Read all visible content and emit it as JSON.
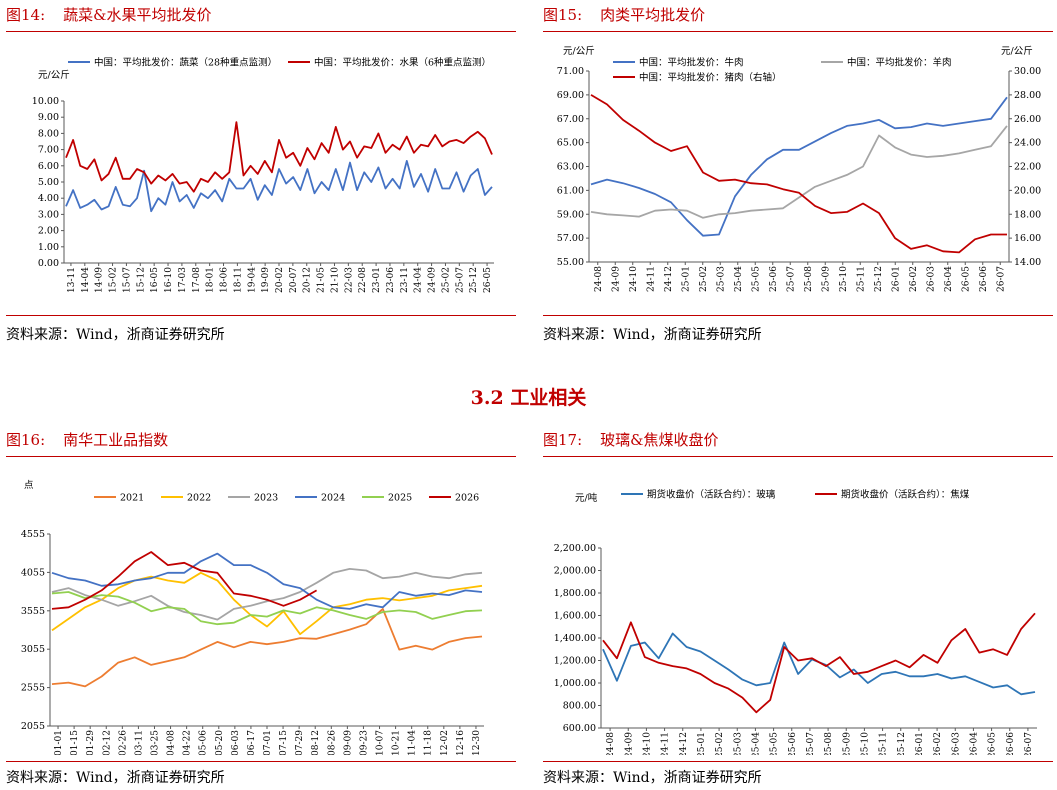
{
  "section_heading": "3.2 工业相关",
  "panels": [
    {
      "id": "fig14",
      "number": "图14:",
      "title": "蔬菜&水果平均批发价",
      "source": "资料来源：Wind，浙商证券研究所",
      "chart_data": {
        "type": "line",
        "unit_left": "元/公斤",
        "ylim": [
          0,
          10
        ],
        "yticks": [
          "0.00",
          "1.00",
          "2.00",
          "3.00",
          "4.00",
          "5.00",
          "6.00",
          "7.00",
          "8.00",
          "9.00",
          "10.00"
        ],
        "x_tick_labels": [
          "13-11",
          "14-04",
          "14-09",
          "15-02",
          "15-07",
          "15-12",
          "16-05",
          "16-10",
          "17-03",
          "17-08",
          "18-01",
          "18-06",
          "18-11",
          "19-04",
          "19-09",
          "20-02",
          "20-07",
          "20-12",
          "21-05",
          "21-10",
          "22-03",
          "22-08",
          "23-01",
          "23-06",
          "23-11",
          "24-04",
          "24-09",
          "25-02",
          "25-07",
          "25-12",
          "26-05"
        ],
        "series": [
          {
            "name": "中国：平均批发价：蔬菜（28种重点监测）",
            "color": "#4472c4",
            "values": [
              3.5,
              4.5,
              3.4,
              3.6,
              3.9,
              3.3,
              3.5,
              4.7,
              3.6,
              3.5,
              4.0,
              5.7,
              3.2,
              4.0,
              3.6,
              5.0,
              3.8,
              4.2,
              3.4,
              4.3,
              4.0,
              4.5,
              3.8,
              5.2,
              4.6,
              4.6,
              5.2,
              3.9,
              4.8,
              4.2,
              5.8,
              4.9,
              5.3,
              4.5,
              5.8,
              4.3,
              5.0,
              4.5,
              5.8,
              4.5,
              6.2,
              4.5,
              5.6,
              5.0,
              5.9,
              4.6,
              5.2,
              4.6,
              6.3,
              4.7,
              5.5,
              4.4,
              5.8,
              4.6,
              4.6,
              5.6,
              4.4,
              5.4,
              5.8,
              4.2,
              4.7
            ]
          },
          {
            "name": "中国：平均批发价：水果（6种重点监测）",
            "color": "#c00000",
            "values": [
              6.5,
              7.6,
              6.0,
              5.8,
              6.4,
              5.1,
              5.5,
              6.5,
              5.2,
              5.2,
              5.8,
              5.6,
              4.9,
              5.4,
              5.1,
              5.5,
              4.9,
              5.0,
              4.4,
              5.2,
              5.0,
              5.6,
              5.2,
              5.6,
              8.7,
              5.4,
              6.0,
              5.5,
              6.3,
              5.6,
              7.6,
              6.5,
              6.8,
              6.0,
              7.1,
              6.4,
              7.4,
              6.8,
              8.4,
              7.0,
              7.5,
              6.5,
              7.2,
              7.1,
              8.0,
              6.8,
              7.3,
              7.0,
              7.8,
              6.8,
              7.3,
              7.2,
              7.9,
              7.2,
              7.5,
              7.6,
              7.4,
              7.8,
              8.1,
              7.7,
              6.7
            ]
          }
        ]
      }
    },
    {
      "id": "fig15",
      "number": "图15:",
      "title": "肉类平均批发价",
      "source": "资料来源：Wind，浙商证券研究所",
      "chart_data": {
        "type": "line",
        "unit_left": "元/公斤",
        "unit_right": "元/公斤",
        "ylim_left": [
          55,
          71
        ],
        "ylim_right": [
          14,
          30
        ],
        "yticks_left": [
          "55.00",
          "57.00",
          "59.00",
          "61.00",
          "63.00",
          "65.00",
          "67.00",
          "69.00",
          "71.00"
        ],
        "yticks_right": [
          "14.00",
          "16.00",
          "18.00",
          "20.00",
          "22.00",
          "24.00",
          "26.00",
          "28.00",
          "30.00"
        ],
        "x_tick_labels": [
          "24-08",
          "24-09",
          "24-10",
          "24-11",
          "24-12",
          "25-01",
          "25-02",
          "25-03",
          "25-04",
          "25-05",
          "25-06",
          "25-07",
          "25-08",
          "25-09",
          "25-10",
          "25-11",
          "25-12",
          "26-01",
          "26-02",
          "26-03",
          "26-04",
          "26-05",
          "26-06",
          "26-07"
        ],
        "series": [
          {
            "name": "中国：平均批发价：牛肉",
            "axis": "left",
            "color": "#4472c4",
            "values": [
              61.5,
              61.9,
              61.6,
              61.2,
              60.7,
              60.0,
              58.5,
              57.2,
              57.3,
              60.5,
              62.3,
              63.6,
              64.4,
              64.4,
              65.1,
              65.8,
              66.4,
              66.6,
              66.9,
              66.2,
              66.3,
              66.6,
              66.4,
              66.6,
              66.8,
              67.0,
              68.8
            ]
          },
          {
            "name": "中国：平均批发价：羊肉",
            "axis": "left",
            "color": "#a6a6a6",
            "values": [
              59.2,
              59.0,
              58.9,
              58.8,
              59.3,
              59.4,
              59.3,
              58.7,
              59.0,
              59.1,
              59.3,
              59.4,
              59.5,
              60.4,
              61.3,
              61.8,
              62.3,
              63.0,
              65.6,
              64.6,
              64.0,
              63.8,
              63.9,
              64.1,
              64.4,
              64.7,
              66.4
            ]
          },
          {
            "name": "中国：平均批发价：猪肉（右轴）",
            "axis": "right",
            "color": "#c00000",
            "values": [
              28.0,
              27.2,
              25.9,
              25.0,
              24.0,
              23.3,
              23.7,
              21.5,
              20.8,
              20.9,
              20.6,
              20.5,
              20.1,
              19.8,
              18.7,
              18.1,
              18.2,
              18.9,
              18.1,
              16.0,
              15.1,
              15.4,
              14.9,
              14.8,
              15.9,
              16.3,
              16.3
            ]
          }
        ]
      }
    },
    {
      "id": "fig16",
      "number": "图16:",
      "title": "南华工业品指数",
      "source": "资料来源：Wind，浙商证券研究所",
      "chart_data": {
        "type": "line",
        "unit_left": "点",
        "ylim": [
          2055,
          4555
        ],
        "yticks": [
          "2055",
          "2555",
          "3055",
          "3555",
          "4055",
          "4555"
        ],
        "x_tick_labels": [
          "01-01",
          "01-15",
          "01-29",
          "02-12",
          "02-26",
          "03-11",
          "03-25",
          "04-08",
          "04-22",
          "05-06",
          "05-20",
          "06-03",
          "06-17",
          "07-01",
          "07-15",
          "07-29",
          "08-12",
          "08-26",
          "09-09",
          "09-23",
          "10-07",
          "10-21",
          "11-04",
          "11-18",
          "12-02",
          "12-16",
          "12-30"
        ],
        "series": [
          {
            "name": "2021",
            "color": "#ed7d31",
            "values": [
              2600,
              2620,
              2570,
              2700,
              2880,
              2950,
              2850,
              2900,
              2950,
              3050,
              3150,
              3080,
              3150,
              3120,
              3150,
              3200,
              3190,
              3250,
              3310,
              3380,
              3580,
              3050,
              3100,
              3050,
              3150,
              3200,
              3220
            ]
          },
          {
            "name": "2022",
            "color": "#ffc000",
            "values": [
              3300,
              3450,
              3600,
              3700,
              3850,
              3950,
              4000,
              3950,
              3920,
              4050,
              3950,
              3700,
              3500,
              3350,
              3550,
              3250,
              3420,
              3600,
              3640,
              3700,
              3720,
              3690,
              3720,
              3750,
              3820,
              3850,
              3880
            ]
          },
          {
            "name": "2023",
            "color": "#a5a5a5",
            "values": [
              3800,
              3850,
              3760,
              3700,
              3620,
              3680,
              3750,
              3620,
              3540,
              3500,
              3440,
              3580,
              3620,
              3680,
              3720,
              3800,
              3920,
              4050,
              4100,
              4080,
              3980,
              4000,
              4050,
              4000,
              3980,
              4030,
              4050
            ]
          },
          {
            "name": "2024",
            "color": "#4472c4",
            "values": [
              4050,
              3980,
              3950,
              3880,
              3900,
              3950,
              3980,
              4050,
              4050,
              4200,
              4300,
              4150,
              4150,
              4050,
              3900,
              3850,
              3700,
              3600,
              3580,
              3640,
              3600,
              3800,
              3750,
              3780,
              3760,
              3820,
              3800
            ]
          },
          {
            "name": "2025",
            "color": "#92d050",
            "values": [
              3780,
              3800,
              3720,
              3760,
              3740,
              3660,
              3550,
              3600,
              3580,
              3420,
              3380,
              3400,
              3500,
              3480,
              3560,
              3520,
              3600,
              3560,
              3500,
              3450,
              3540,
              3560,
              3540,
              3450,
              3500,
              3550,
              3560
            ]
          },
          {
            "name": "2026",
            "color": "#c00000",
            "values": [
              3580,
              3600,
              3700,
              3820,
              4000,
              4200,
              4320,
              4150,
              4180,
              4080,
              4050,
              3780,
              3750,
              3700,
              3620,
              3700,
              3820
            ]
          }
        ]
      }
    },
    {
      "id": "fig17",
      "number": "图17:",
      "title": "玻璃&焦煤收盘价",
      "source": "资料来源：Wind，浙商证券研究所",
      "chart_data": {
        "type": "line",
        "unit_left": "元/吨",
        "ylim": [
          600,
          2200
        ],
        "yticks": [
          "600.00",
          "800.00",
          "1,000.00",
          "1,200.00",
          "1,400.00",
          "1,600.00",
          "1,800.00",
          "2,000.00",
          "2,200.00"
        ],
        "x_tick_labels": [
          "24-08",
          "24-09",
          "24-10",
          "24-11",
          "24-12",
          "25-01",
          "25-02",
          "25-03",
          "25-04",
          "25-05",
          "25-06",
          "25-07",
          "25-08",
          "25-09",
          "25-10",
          "25-11",
          "25-12",
          "26-01",
          "26-02",
          "26-03",
          "26-04",
          "26-05",
          "26-06",
          "26-07"
        ],
        "series": [
          {
            "name": "期货收盘价（活跃合约）：玻璃",
            "color": "#2e75b6",
            "values": [
              1300,
              1020,
              1330,
              1360,
              1220,
              1440,
              1320,
              1280,
              1200,
              1120,
              1030,
              980,
              1000,
              1360,
              1080,
              1210,
              1160,
              1050,
              1120,
              1000,
              1080,
              1100,
              1060,
              1060,
              1080,
              1040,
              1060,
              1010,
              960,
              980,
              900,
              920
            ]
          },
          {
            "name": "期货收盘价（活跃合约）：焦煤",
            "color": "#c00000",
            "values": [
              1380,
              1220,
              1540,
              1230,
              1180,
              1150,
              1130,
              1080,
              1000,
              950,
              870,
              740,
              850,
              1320,
              1200,
              1220,
              1150,
              1230,
              1080,
              1100,
              1150,
              1200,
              1140,
              1250,
              1180,
              1380,
              1480,
              1270,
              1300,
              1250,
              1480,
              1620
            ]
          }
        ]
      }
    }
  ]
}
